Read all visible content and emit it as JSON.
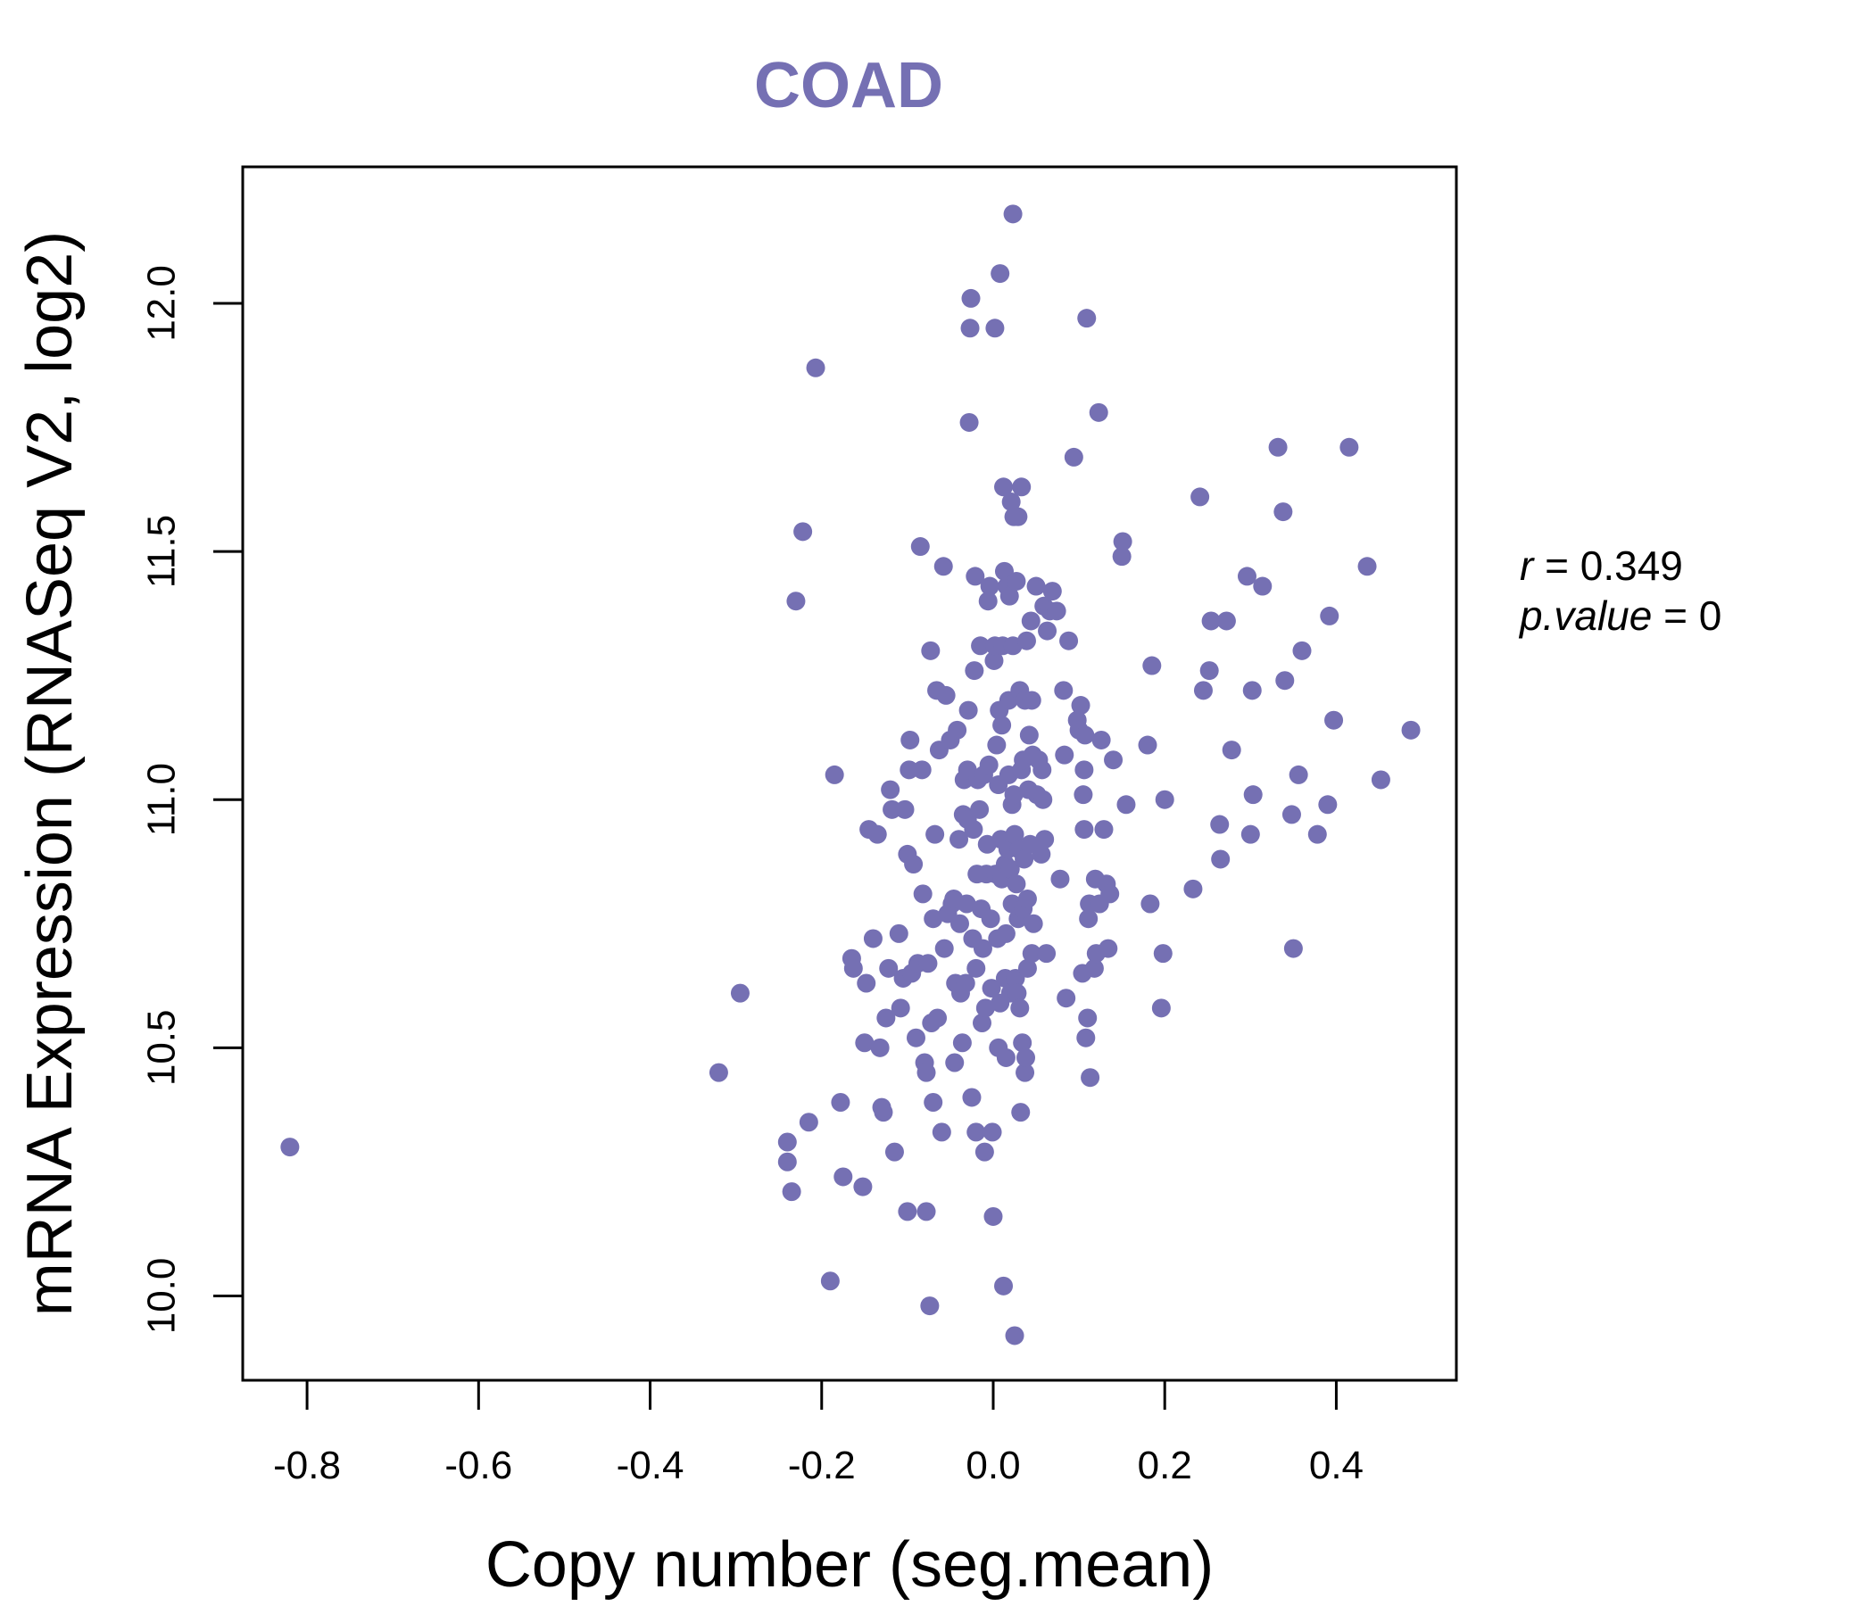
{
  "colors": {
    "accent": "#7570B3",
    "axis": "#000000",
    "background": "#FFFFFF"
  },
  "chart_data": {
    "type": "scatter",
    "title": "COAD",
    "xlabel": "Copy number (seg.mean)",
    "ylabel": "mRNA Expression (RNASeq V2, log2)",
    "xlim": [
      -0.875,
      0.54
    ],
    "ylim": [
      9.83,
      12.275
    ],
    "xticks": [
      -0.8,
      -0.6,
      -0.4,
      -0.2,
      0.0,
      0.2,
      0.4
    ],
    "xtick_labels": [
      "-0.8",
      "-0.6",
      "-0.4",
      "-0.2",
      "0.0",
      "0.2",
      "0.4"
    ],
    "yticks": [
      10.0,
      10.5,
      11.0,
      11.5,
      12.0
    ],
    "ytick_labels": [
      "10.0",
      "10.5",
      "11.0",
      "11.5",
      "12.0"
    ],
    "stats": {
      "r_label": "r",
      "r_value": "0.349",
      "p_label": "p.value",
      "p_value": "0"
    },
    "points": [
      [
        -0.82,
        10.3
      ],
      [
        -0.32,
        10.45
      ],
      [
        -0.295,
        10.61
      ],
      [
        -0.24,
        10.31
      ],
      [
        -0.24,
        10.27
      ],
      [
        -0.235,
        10.21
      ],
      [
        -0.23,
        11.4
      ],
      [
        -0.222,
        11.54
      ],
      [
        -0.215,
        10.35
      ],
      [
        -0.207,
        11.87
      ],
      [
        -0.19,
        10.03
      ],
      [
        -0.185,
        11.05
      ],
      [
        -0.178,
        10.39
      ],
      [
        -0.175,
        10.24
      ],
      [
        -0.165,
        10.68
      ],
      [
        -0.163,
        10.66
      ],
      [
        -0.152,
        10.22
      ],
      [
        -0.15,
        10.51
      ],
      [
        -0.148,
        10.63
      ],
      [
        -0.145,
        10.94
      ],
      [
        -0.14,
        10.72
      ],
      [
        -0.135,
        10.93
      ],
      [
        -0.132,
        10.5
      ],
      [
        -0.13,
        10.38
      ],
      [
        -0.128,
        10.37
      ],
      [
        -0.125,
        10.56
      ],
      [
        -0.122,
        10.66
      ],
      [
        -0.12,
        11.02
      ],
      [
        -0.118,
        10.98
      ],
      [
        -0.115,
        10.29
      ],
      [
        -0.11,
        10.73
      ],
      [
        -0.108,
        10.58
      ],
      [
        -0.105,
        10.64
      ],
      [
        -0.103,
        10.98
      ],
      [
        -0.1,
        10.17
      ],
      [
        -0.1,
        10.89
      ],
      [
        -0.098,
        11.06
      ],
      [
        -0.097,
        11.12
      ],
      [
        -0.095,
        10.65
      ],
      [
        -0.093,
        10.87
      ],
      [
        -0.09,
        10.52
      ],
      [
        -0.088,
        10.67
      ],
      [
        -0.085,
        11.51
      ],
      [
        -0.083,
        11.06
      ],
      [
        -0.082,
        10.81
      ],
      [
        -0.08,
        10.47
      ],
      [
        -0.078,
        10.17
      ],
      [
        -0.078,
        10.45
      ],
      [
        -0.076,
        10.67
      ],
      [
        -0.074,
        9.98
      ],
      [
        -0.073,
        11.3
      ],
      [
        -0.072,
        10.55
      ],
      [
        -0.07,
        10.39
      ],
      [
        -0.07,
        10.76
      ],
      [
        -0.068,
        10.93
      ],
      [
        -0.066,
        11.22
      ],
      [
        -0.065,
        10.56
      ],
      [
        -0.063,
        11.1
      ],
      [
        -0.06,
        10.33
      ],
      [
        -0.058,
        11.47
      ],
      [
        -0.057,
        10.7
      ],
      [
        -0.055,
        11.21
      ],
      [
        -0.053,
        10.77
      ],
      [
        -0.05,
        11.12
      ],
      [
        -0.048,
        10.79
      ],
      [
        -0.046,
        10.8
      ],
      [
        -0.045,
        10.47
      ],
      [
        -0.044,
        10.63
      ],
      [
        -0.042,
        11.14
      ],
      [
        -0.04,
        10.92
      ],
      [
        -0.039,
        10.75
      ],
      [
        -0.038,
        10.61
      ],
      [
        -0.036,
        10.51
      ],
      [
        -0.035,
        10.97
      ],
      [
        -0.034,
        11.04
      ],
      [
        -0.032,
        10.63
      ],
      [
        -0.031,
        10.79
      ],
      [
        -0.03,
        11.06
      ],
      [
        -0.03,
        10.96
      ],
      [
        -0.029,
        11.18
      ],
      [
        -0.028,
        11.76
      ],
      [
        -0.027,
        11.95
      ],
      [
        -0.026,
        12.01
      ],
      [
        -0.025,
        10.4
      ],
      [
        -0.024,
        10.72
      ],
      [
        -0.023,
        10.94
      ],
      [
        -0.022,
        11.26
      ],
      [
        -0.021,
        11.45
      ],
      [
        -0.02,
        10.33
      ],
      [
        -0.02,
        10.66
      ],
      [
        -0.019,
        10.85
      ],
      [
        -0.018,
        11.04
      ],
      [
        -0.016,
        10.98
      ],
      [
        -0.015,
        11.31
      ],
      [
        -0.014,
        10.78
      ],
      [
        -0.013,
        10.55
      ],
      [
        -0.012,
        10.7
      ],
      [
        -0.011,
        11.05
      ],
      [
        -0.01,
        10.29
      ],
      [
        -0.009,
        10.58
      ],
      [
        -0.008,
        10.85
      ],
      [
        -0.007,
        10.91
      ],
      [
        -0.006,
        11.4
      ],
      [
        -0.005,
        11.07
      ],
      [
        -0.004,
        11.43
      ],
      [
        -0.003,
        10.76
      ],
      [
        -0.002,
        10.62
      ],
      [
        -0.001,
        10.33
      ],
      [
        0.0,
        10.16
      ],
      [
        0.001,
        11.28
      ],
      [
        0.002,
        11.95
      ],
      [
        0.002,
        11.31
      ],
      [
        0.003,
        10.85
      ],
      [
        0.004,
        11.11
      ],
      [
        0.005,
        10.72
      ],
      [
        0.006,
        10.5
      ],
      [
        0.006,
        11.03
      ],
      [
        0.007,
        11.18
      ],
      [
        0.008,
        10.59
      ],
      [
        0.008,
        12.06
      ],
      [
        0.009,
        10.92
      ],
      [
        0.01,
        11.15
      ],
      [
        0.01,
        10.84
      ],
      [
        0.011,
        11.31
      ],
      [
        0.012,
        10.02
      ],
      [
        0.012,
        11.63
      ],
      [
        0.013,
        11.46
      ],
      [
        0.014,
        10.64
      ],
      [
        0.014,
        10.87
      ],
      [
        0.015,
        10.48
      ],
      [
        0.015,
        10.73
      ],
      [
        0.016,
        11.43
      ],
      [
        0.017,
        10.9
      ],
      [
        0.018,
        11.2
      ],
      [
        0.018,
        11.05
      ],
      [
        0.019,
        11.41
      ],
      [
        0.02,
        10.61
      ],
      [
        0.02,
        10.86
      ],
      [
        0.021,
        11.6
      ],
      [
        0.022,
        10.99
      ],
      [
        0.022,
        10.79
      ],
      [
        0.023,
        12.18
      ],
      [
        0.023,
        11.31
      ],
      [
        0.024,
        11.57
      ],
      [
        0.024,
        11.01
      ],
      [
        0.025,
        9.92
      ],
      [
        0.025,
        10.93
      ],
      [
        0.026,
        10.64
      ],
      [
        0.027,
        10.83
      ],
      [
        0.027,
        11.44
      ],
      [
        0.028,
        10.61
      ],
      [
        0.029,
        11.57
      ],
      [
        0.029,
        10.76
      ],
      [
        0.03,
        10.9
      ],
      [
        0.031,
        10.58
      ],
      [
        0.031,
        11.22
      ],
      [
        0.032,
        10.37
      ],
      [
        0.033,
        11.63
      ],
      [
        0.033,
        11.06
      ],
      [
        0.034,
        10.51
      ],
      [
        0.035,
        10.78
      ],
      [
        0.035,
        11.08
      ],
      [
        0.036,
        10.88
      ],
      [
        0.037,
        10.45
      ],
      [
        0.037,
        11.2
      ],
      [
        0.038,
        10.48
      ],
      [
        0.039,
        11.32
      ],
      [
        0.04,
        10.66
      ],
      [
        0.04,
        10.8
      ],
      [
        0.041,
        11.02
      ],
      [
        0.042,
        11.13
      ],
      [
        0.043,
        10.91
      ],
      [
        0.044,
        11.36
      ],
      [
        0.045,
        10.69
      ],
      [
        0.045,
        11.2
      ],
      [
        0.046,
        11.09
      ],
      [
        0.047,
        10.75
      ],
      [
        0.05,
        11.43
      ],
      [
        0.051,
        11.01
      ],
      [
        0.053,
        11.08
      ],
      [
        0.056,
        10.89
      ],
      [
        0.057,
        11.06
      ],
      [
        0.058,
        11.0
      ],
      [
        0.059,
        11.39
      ],
      [
        0.06,
        10.92
      ],
      [
        0.062,
        10.69
      ],
      [
        0.063,
        11.34
      ],
      [
        0.066,
        11.38
      ],
      [
        0.069,
        11.42
      ],
      [
        0.074,
        11.38
      ],
      [
        0.078,
        10.84
      ],
      [
        0.082,
        11.22
      ],
      [
        0.083,
        11.09
      ],
      [
        0.085,
        10.6
      ],
      [
        0.088,
        11.32
      ],
      [
        0.094,
        11.69
      ],
      [
        0.098,
        11.16
      ],
      [
        0.1,
        11.14
      ],
      [
        0.102,
        11.19
      ],
      [
        0.104,
        10.65
      ],
      [
        0.105,
        11.01
      ],
      [
        0.106,
        11.06
      ],
      [
        0.106,
        10.94
      ],
      [
        0.107,
        11.13
      ],
      [
        0.108,
        10.52
      ],
      [
        0.109,
        11.97
      ],
      [
        0.11,
        10.56
      ],
      [
        0.111,
        10.76
      ],
      [
        0.112,
        10.79
      ],
      [
        0.113,
        10.44
      ],
      [
        0.118,
        10.66
      ],
      [
        0.119,
        10.84
      ],
      [
        0.12,
        10.69
      ],
      [
        0.123,
        11.78
      ],
      [
        0.124,
        10.79
      ],
      [
        0.126,
        11.12
      ],
      [
        0.129,
        10.94
      ],
      [
        0.132,
        10.83
      ],
      [
        0.134,
        10.7
      ],
      [
        0.136,
        10.81
      ],
      [
        0.14,
        11.08
      ],
      [
        0.15,
        11.49
      ],
      [
        0.151,
        11.52
      ],
      [
        0.155,
        10.99
      ],
      [
        0.18,
        11.11
      ],
      [
        0.183,
        10.79
      ],
      [
        0.185,
        11.27
      ],
      [
        0.196,
        10.58
      ],
      [
        0.198,
        10.69
      ],
      [
        0.2,
        11.0
      ],
      [
        0.233,
        10.82
      ],
      [
        0.241,
        11.61
      ],
      [
        0.245,
        11.22
      ],
      [
        0.252,
        11.26
      ],
      [
        0.254,
        11.36
      ],
      [
        0.264,
        10.95
      ],
      [
        0.265,
        10.88
      ],
      [
        0.272,
        11.36
      ],
      [
        0.278,
        11.1
      ],
      [
        0.296,
        11.45
      ],
      [
        0.3,
        10.93
      ],
      [
        0.302,
        11.22
      ],
      [
        0.303,
        11.01
      ],
      [
        0.314,
        11.43
      ],
      [
        0.332,
        11.71
      ],
      [
        0.338,
        11.58
      ],
      [
        0.34,
        11.24
      ],
      [
        0.348,
        10.97
      ],
      [
        0.35,
        10.7
      ],
      [
        0.356,
        11.05
      ],
      [
        0.36,
        11.3
      ],
      [
        0.378,
        10.93
      ],
      [
        0.39,
        10.99
      ],
      [
        0.392,
        11.37
      ],
      [
        0.397,
        11.16
      ],
      [
        0.415,
        11.71
      ],
      [
        0.436,
        11.47
      ],
      [
        0.452,
        11.04
      ],
      [
        0.487,
        11.14
      ]
    ]
  }
}
